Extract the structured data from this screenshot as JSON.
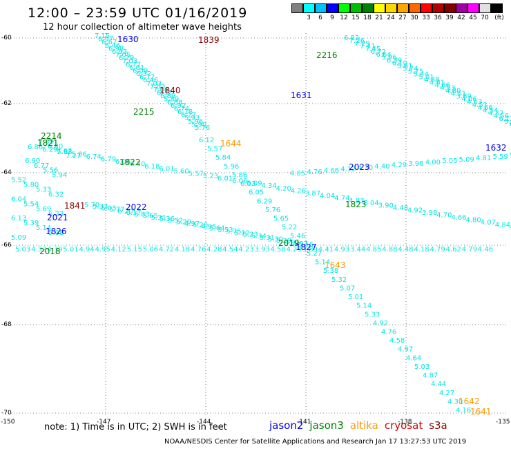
{
  "header": {
    "title": "12:00 – 23:59 UTC 01/16/2019",
    "subtitle": "12 hour collection of altimeter wave heights"
  },
  "colorbar": {
    "colors": [
      "#808080",
      "#00ffff",
      "#00bfff",
      "#0000ff",
      "#00ff00",
      "#00bf00",
      "#008000",
      "#ffff00",
      "#ffd700",
      "#ffa500",
      "#ff6600",
      "#ff0000",
      "#b00000",
      "#800000",
      "#a000a0",
      "#ff00ff",
      "#e0e0e0",
      "#000000"
    ],
    "labels": [
      "3",
      "6",
      "9",
      "12",
      "15",
      "18",
      "21",
      "24",
      "27",
      "30",
      "33",
      "36",
      "39",
      "42",
      "45",
      "70"
    ],
    "unit": "(ft)"
  },
  "axes": {
    "lat_labels": [
      "-60",
      "-62",
      "-64",
      "-66",
      "-68",
      "-70"
    ],
    "lon_labels": [
      "-150",
      "-147",
      "-144",
      "-141",
      "-138",
      "-135"
    ]
  },
  "wave_color": "#00e5e5",
  "time_labels": [
    {
      "text": "1630",
      "color": "#0000ee"
    },
    {
      "text": "1839",
      "color": "#8b0000"
    },
    {
      "text": "2216",
      "color": "#008000"
    },
    {
      "text": "1840",
      "color": "#8b0000"
    },
    {
      "text": "1631",
      "color": "#0000ee"
    },
    {
      "text": "2215",
      "color": "#008000"
    },
    {
      "text": "2214",
      "color": "#008000"
    },
    {
      "text": "1821",
      "color": "#008000"
    },
    {
      "text": "1644",
      "color": "#ff9900"
    },
    {
      "text": "1632",
      "color": "#0000ee"
    },
    {
      "text": "1822",
      "color": "#008000"
    },
    {
      "text": "2023",
      "color": "#0000ee"
    },
    {
      "text": "1841",
      "color": "#8b0000"
    },
    {
      "text": "2022",
      "color": "#0000ee"
    },
    {
      "text": "1823",
      "color": "#008000"
    },
    {
      "text": "2021",
      "color": "#0000ee"
    },
    {
      "text": "1826",
      "color": "#0000ee"
    },
    {
      "text": "2019",
      "color": "#008000"
    },
    {
      "text": "1827",
      "color": "#0000ee"
    },
    {
      "text": "2018",
      "color": "#008000"
    },
    {
      "text": "1643",
      "color": "#ff9900"
    },
    {
      "text": "1642",
      "color": "#ff9900"
    },
    {
      "text": "1641",
      "color": "#ff9900"
    }
  ],
  "wave_heights": [
    "7.15",
    "6.97",
    "6.67",
    "6.46",
    "6.98",
    "6.93",
    "7.05",
    "6.29",
    "7.03",
    "6.77",
    "6.61",
    "6.09",
    "6.32",
    "6.12",
    "6.46",
    "7.03",
    "7.03",
    "7.06",
    "6.32",
    "6.89",
    "5.89",
    "6.88",
    "6.92",
    "6.74",
    "6.18",
    "6.27",
    "5.93",
    "5.96",
    "5.90",
    "5.76",
    "6.12",
    "5.57",
    "5.84",
    "5.96",
    "5.86",
    "6.03",
    "6.05",
    "6.29",
    "5.76",
    "5.65",
    "5.22",
    "5.46",
    "5.15",
    "5.27",
    "5.14",
    "5.38",
    "5.32",
    "5.07",
    "5.01",
    "5.14",
    "5.33",
    "4.92",
    "4.76",
    "4.58",
    "4.97",
    "4.64",
    "5.03",
    "4.87",
    "4.44",
    "4.27",
    "4.30",
    "4.16",
    "6.82",
    "7.26",
    "7.29",
    "7.31",
    "7.45",
    "6.72",
    "6.64",
    "5.96",
    "6.39",
    "6.10",
    "5.61",
    "5.74",
    "5.75",
    "5.44",
    "5.01",
    "4.88",
    "4.81",
    "4.66",
    "4.53",
    "4.80",
    "4.51",
    "3.89",
    "4.06",
    "4.63",
    "4.51",
    "4.66",
    "4.54",
    "4.32",
    "4.56",
    "6.12",
    "5.28",
    "6.43",
    "7.49",
    "6.80",
    "7.67",
    "7.27",
    "6.90",
    "6.77",
    "5.56",
    "5.94",
    "5.52",
    "5.80",
    "5.33",
    "6.32",
    "6.04",
    "5.54",
    "5.69",
    "6.23",
    "6.13",
    "5.39",
    "5.14",
    "5.08",
    "5.09",
    "6.86",
    "6.29",
    "5.88",
    "5.86",
    "6.74",
    "6.79",
    "6.06",
    "6.30",
    "6.18",
    "6.01",
    "5.60",
    "5.57",
    "5.23",
    "6.01",
    "6.06",
    "5.09",
    "4.34",
    "4.20",
    "4.26",
    "3.87",
    "4.04",
    "4.74",
    "4.83",
    "5.04",
    "3.90",
    "4.48",
    "4.92",
    "3.98",
    "4.70",
    "4.66",
    "4.80",
    "4.07",
    "4.84",
    "4.33",
    "4.85",
    "4.76",
    "4.66",
    "4.12",
    "4.30",
    "4.40",
    "4.29",
    "3.98",
    "4.00",
    "5.05",
    "5.09",
    "4.81",
    "5.59",
    "5.26",
    "5.70",
    "5.33",
    "6.03",
    "5.77",
    "6.20",
    "6.17",
    "5.83",
    "5.65",
    "5.31",
    "5.36",
    "5.52",
    "5.29",
    "4.97",
    "5.20",
    "4.95",
    "5.64",
    "5.53",
    "5.75",
    "5.12",
    "5.23",
    "5.34",
    "5.31",
    "5.30",
    "5.29",
    "4.91",
    "4.97",
    "5.03",
    "4.32",
    "4.39",
    "5.01",
    "4.94",
    "4.95",
    "4.12",
    "5.15",
    "5.06",
    "4.72",
    "4.18",
    "4.76",
    "4.28",
    "4.54",
    "4.23",
    "3.93",
    "4.58",
    "4.23",
    "3.89",
    "4.41",
    "4.93",
    "3.44",
    "4.85",
    "4.88",
    "4.48",
    "4.18",
    "4.79",
    "4.62",
    "4.79",
    "4.46"
  ],
  "footer": {
    "note": "note: 1) Time is in UTC; 2) SWH is in feet",
    "credit": "NOAA/NESDIS Center for Satellite Applications and Research    Jan 17 13:27:53 UTC 2019"
  },
  "legend": [
    {
      "label": "jason2",
      "color": "#0000ee"
    },
    {
      "label": "jason3",
      "color": "#008000"
    },
    {
      "label": "altika",
      "color": "#ff9900"
    },
    {
      "label": "cryosat",
      "color": "#cc0000"
    },
    {
      "label": "s3a",
      "color": "#8b0000"
    }
  ]
}
